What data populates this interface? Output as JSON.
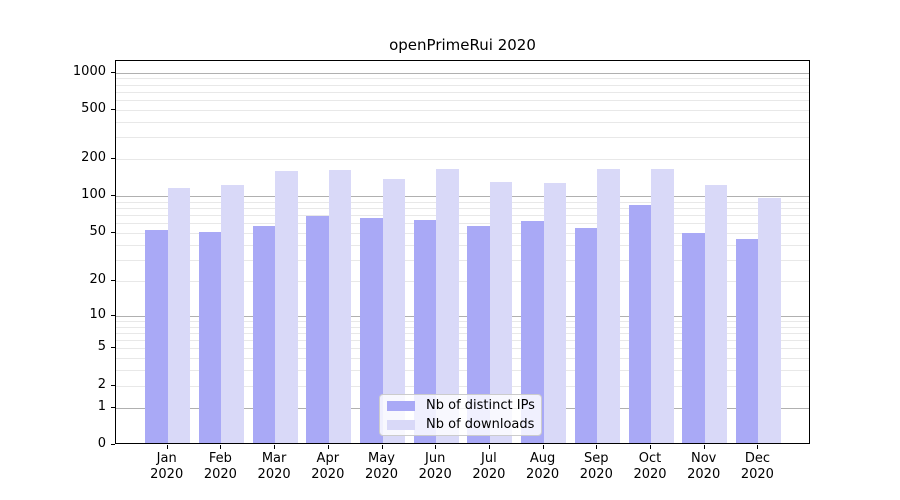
{
  "chart_data": {
    "type": "bar",
    "title": "openPrimeRui 2020",
    "categories": [
      "Jan 2020",
      "Feb 2020",
      "Mar 2020",
      "Apr 2020",
      "May 2020",
      "Jun 2020",
      "Jul 2020",
      "Aug 2020",
      "Sep 2020",
      "Oct 2020",
      "Nov 2020",
      "Dec 2020"
    ],
    "x_tick_line1": [
      "Jan",
      "Feb",
      "Mar",
      "Apr",
      "May",
      "Jun",
      "Jul",
      "Aug",
      "Sep",
      "Oct",
      "Nov",
      "Dec"
    ],
    "x_tick_line2": [
      "2020",
      "2020",
      "2020",
      "2020",
      "2020",
      "2020",
      "2020",
      "2020",
      "2020",
      "2020",
      "2020",
      "2020"
    ],
    "series": [
      {
        "name": "Nb of distinct IPs",
        "color": "#a9a9f6",
        "values": [
          51,
          49,
          55,
          67,
          64,
          62,
          55,
          60,
          53,
          82,
          48,
          43
        ]
      },
      {
        "name": "Nb of downloads",
        "color": "#d9d9f8",
        "values": [
          112,
          120,
          155,
          158,
          134,
          159,
          126,
          124,
          161,
          159,
          118,
          93
        ]
      }
    ],
    "xlabel": "",
    "ylabel": "",
    "y_axis": {
      "scale": "symlog",
      "tick_values": [
        0,
        1,
        2,
        5,
        10,
        20,
        50,
        100,
        200,
        500,
        1000
      ],
      "tick_labels": [
        "0",
        "1",
        "2",
        "5",
        "10",
        "20",
        "50",
        "100",
        "200",
        "500",
        "1000"
      ],
      "ylim": [
        0,
        1240
      ],
      "grid": true,
      "minor_grid": true
    },
    "legend": {
      "position": "inside-bottom-center",
      "items": [
        "Nb of distinct IPs",
        "Nb of downloads"
      ]
    },
    "colors": {
      "grid_major": "#b0b0b0",
      "grid_minor": "#e8e8e8",
      "spine": "#000000",
      "background": "#ffffff"
    }
  }
}
